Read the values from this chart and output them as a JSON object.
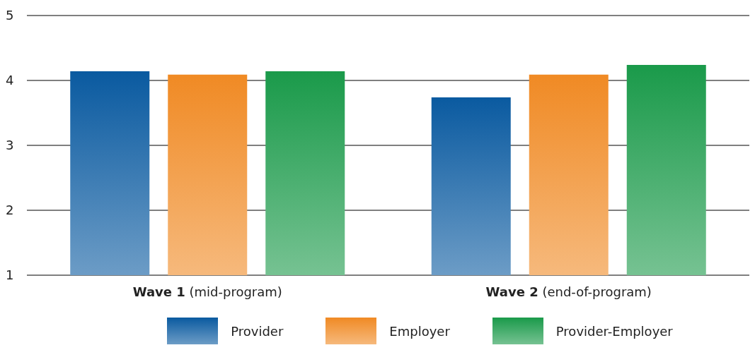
{
  "chart_data": {
    "type": "bar",
    "categories": [
      "Wave 1 (mid-program)",
      "Wave 2 (end-of-program)"
    ],
    "series": [
      {
        "name": "Provider",
        "color": "#0a5aa0",
        "values": [
          4.14,
          3.74
        ]
      },
      {
        "name": "Employer",
        "color": "#f08a24",
        "values": [
          4.09,
          4.09
        ]
      },
      {
        "name": "Provider-Employer",
        "color": "#1a9a4a",
        "values": [
          4.14,
          4.24
        ]
      }
    ],
    "ylim": [
      1,
      5
    ],
    "yticks": [
      1,
      2,
      3,
      4,
      5
    ],
    "grid": "y",
    "legend": "bottom"
  }
}
